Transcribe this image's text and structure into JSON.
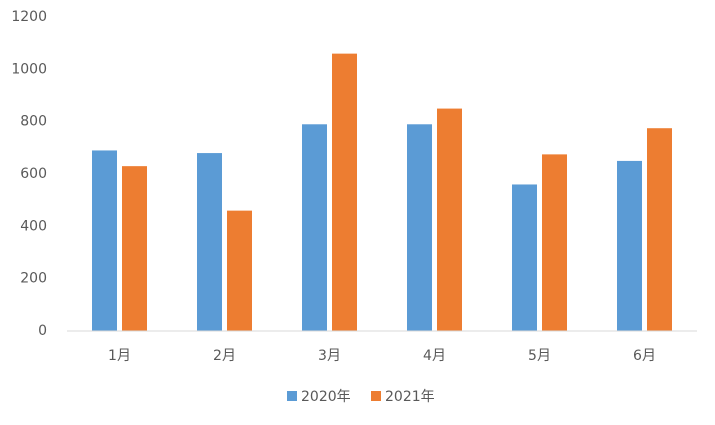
{
  "chart_data": {
    "type": "bar",
    "categories": [
      "1月",
      "2月",
      "3月",
      "4月",
      "5月",
      "6月"
    ],
    "series": [
      {
        "name": "2020年",
        "color": "#5b9bd5",
        "values": [
          690,
          680,
          790,
          790,
          560,
          650
        ]
      },
      {
        "name": "2021年",
        "color": "#ed7d31",
        "values": [
          630,
          460,
          1060,
          850,
          675,
          775
        ]
      }
    ],
    "ylim": [
      0,
      1200
    ],
    "yticks": [
      0,
      200,
      400,
      600,
      800,
      1000,
      1200
    ],
    "grid": false
  }
}
